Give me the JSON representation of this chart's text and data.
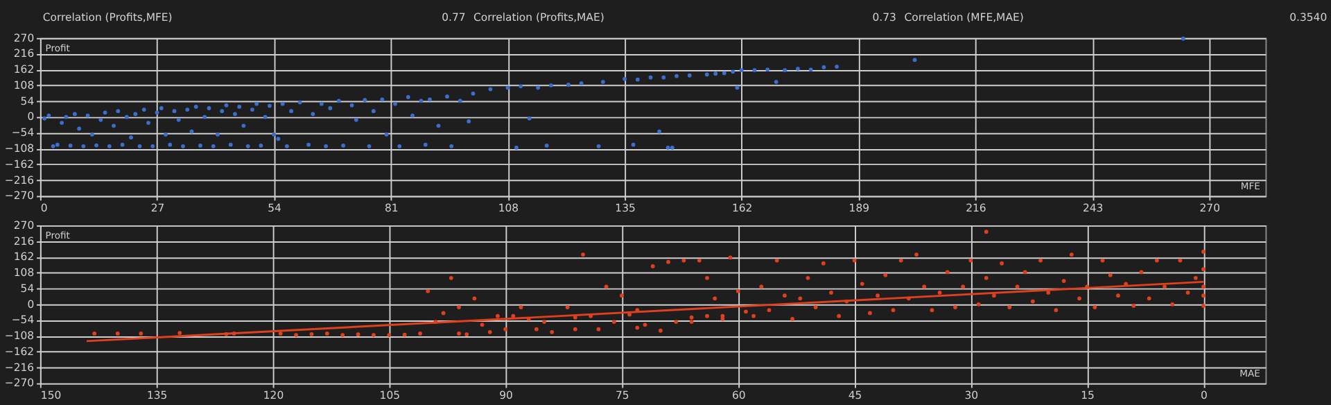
{
  "chart_data": [
    {
      "type": "scatter",
      "xlabel": "MFE",
      "ylabel": "Profit",
      "marker": "circle",
      "grid": true,
      "annotations": [
        "Correlation (Profits,MFE)",
        "0.77",
        "Correlation (Profits,MAE)",
        "0.73",
        "Correlation (MFE,MAE)",
        "0.3540"
      ],
      "xlim": [
        0,
        283
      ],
      "xticks": [
        0,
        27,
        54,
        81,
        108,
        135,
        162,
        189,
        216,
        243,
        270
      ],
      "ylim": [
        -270,
        270
      ],
      "yticks": [
        -270,
        -216,
        -162,
        -108,
        -54,
        0,
        54,
        108,
        162,
        216,
        270
      ],
      "series": [
        {
          "color": "#3a6fd0",
          "x": [
            1,
            2,
            3,
            4,
            5,
            6,
            7,
            8,
            9,
            10,
            11,
            12,
            13,
            14,
            15,
            16,
            17,
            18,
            19,
            20,
            21,
            22,
            23,
            24,
            25,
            26,
            27,
            28,
            29,
            30,
            31,
            32,
            33,
            34,
            35,
            36,
            37,
            38,
            39,
            40,
            41,
            42,
            43,
            44,
            45,
            46,
            47,
            48,
            49,
            50,
            51,
            52,
            53,
            54,
            55,
            56,
            57,
            58,
            60,
            62,
            63,
            65,
            66,
            67,
            69,
            70,
            72,
            73,
            75,
            76,
            77,
            79,
            80,
            82,
            83,
            85,
            86,
            88,
            89,
            90,
            92,
            94,
            95,
            97,
            99,
            100,
            104,
            108,
            110,
            111,
            113,
            115,
            117,
            118,
            122,
            125,
            129,
            130,
            135,
            137,
            138,
            141,
            143,
            144,
            145,
            146,
            147,
            150,
            154,
            156,
            158,
            160,
            161,
            162,
            165,
            168,
            170,
            172,
            175,
            178,
            181,
            184,
            202,
            264
          ],
          "values": [
            -5,
            5,
            -100,
            -95,
            -20,
            0,
            -98,
            10,
            -40,
            -100,
            5,
            -60,
            -97,
            -10,
            15,
            -100,
            -30,
            20,
            -95,
            0,
            -70,
            10,
            -100,
            25,
            -20,
            -100,
            15,
            30,
            -60,
            -95,
            20,
            -10,
            -100,
            25,
            -50,
            35,
            -98,
            0,
            30,
            -100,
            -60,
            20,
            40,
            -95,
            10,
            35,
            -30,
            -100,
            25,
            45,
            -98,
            0,
            38,
            -60,
            -75,
            45,
            -100,
            20,
            50,
            -95,
            10,
            45,
            -100,
            30,
            55,
            -98,
            40,
            -10,
            58,
            -100,
            20,
            60,
            -60,
            45,
            -100,
            68,
            5,
            55,
            -95,
            60,
            -30,
            70,
            -100,
            55,
            -15,
            80,
            95,
            100,
            -105,
            105,
            -5,
            100,
            -98,
            108,
            110,
            115,
            -100,
            120,
            130,
            -95,
            128,
            135,
            -50,
            135,
            -105,
            -105,
            140,
            142,
            145,
            148,
            150,
            155,
            100,
            160,
            160,
            162,
            120,
            160,
            165,
            162,
            170,
            172,
            195,
            268
          ]
        }
      ]
    },
    {
      "type": "scatter",
      "xlabel": "MAE",
      "ylabel": "Profit",
      "marker": "circle",
      "grid": true,
      "xlim": [
        150,
        -8
      ],
      "xticks": [
        150,
        135,
        120,
        105,
        90,
        75,
        60,
        45,
        30,
        15,
        0
      ],
      "ylim": [
        -270,
        270
      ],
      "yticks": [
        -270,
        -216,
        -162,
        -108,
        -54,
        0,
        54,
        108,
        162,
        216,
        270
      ],
      "series": [
        {
          "color": "#e0401e",
          "x": [
            143,
            140,
            137,
            132,
            126,
            125,
            119,
            117,
            115,
            113,
            111,
            109,
            107,
            105,
            103,
            101,
            100,
            99,
            98,
            97,
            96,
            96,
            95,
            94,
            93,
            92,
            91,
            90,
            89,
            88,
            87,
            86,
            85,
            84,
            82,
            81,
            81,
            80,
            79,
            78,
            77,
            76,
            75,
            74,
            73,
            73,
            72,
            71,
            70,
            69,
            68,
            67,
            66,
            66,
            65,
            64,
            64,
            63,
            62,
            62,
            61,
            60,
            59,
            58,
            57,
            56,
            55,
            54,
            53,
            52,
            51,
            50,
            49,
            48,
            47,
            46,
            45,
            44,
            43,
            42,
            41,
            40,
            39,
            38,
            37,
            36,
            35,
            34,
            33,
            32,
            31,
            30,
            29,
            28,
            28,
            27,
            26,
            25,
            24,
            23,
            22,
            21,
            20,
            19,
            18,
            17,
            16,
            15,
            14,
            13,
            12,
            11,
            10,
            9,
            8,
            7,
            6,
            5,
            4,
            3,
            2,
            1,
            0,
            0,
            0,
            0,
            0
          ],
          "values": [
            -100,
            -100,
            -100,
            -98,
            -102,
            -100,
            -100,
            -105,
            -102,
            -100,
            -105,
            -103,
            -105,
            -105,
            -104,
            -100,
            45,
            -60,
            -30,
            90,
            -100,
            -10,
            -103,
            20,
            -70,
            -95,
            -40,
            -85,
            -40,
            -10,
            -50,
            -85,
            -60,
            -95,
            -10,
            -45,
            -85,
            170,
            -40,
            -85,
            60,
            -60,
            30,
            -35,
            -80,
            -20,
            -70,
            130,
            -90,
            145,
            -60,
            150,
            -45,
            -60,
            150,
            90,
            -40,
            20,
            -50,
            -40,
            160,
            45,
            -25,
            -40,
            60,
            -20,
            150,
            30,
            -50,
            20,
            90,
            -10,
            140,
            40,
            -40,
            10,
            150,
            70,
            -30,
            30,
            100,
            -20,
            150,
            20,
            170,
            60,
            -20,
            40,
            110,
            -10,
            60,
            150,
            0,
            90,
            248,
            30,
            140,
            -10,
            60,
            110,
            10,
            150,
            40,
            -20,
            80,
            170,
            20,
            60,
            -10,
            150,
            100,
            30,
            70,
            -5,
            110,
            20,
            150,
            60,
            0,
            150,
            40,
            90,
            -5,
            30,
            120,
            180,
            60
          ]
        },
        {
          "type": "line",
          "marker": "none",
          "line_style": "solid",
          "color": "#e0401e",
          "x": [
            144,
            0
          ],
          "values": [
            -126,
            77
          ]
        }
      ]
    }
  ]
}
